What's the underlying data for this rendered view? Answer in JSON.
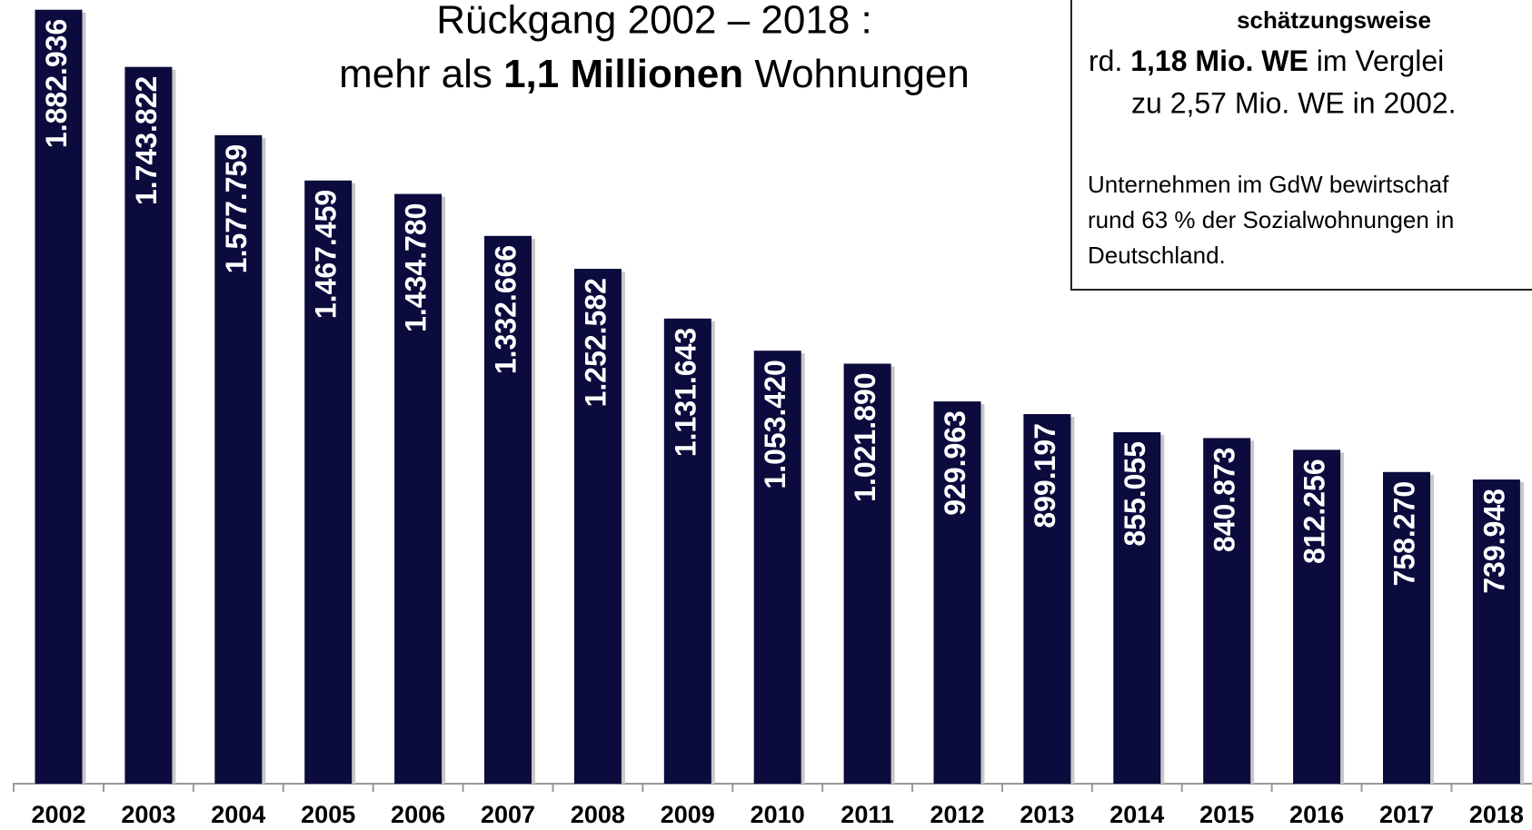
{
  "chart_data": {
    "type": "bar",
    "title": {
      "line1": "Rückgang 2002 – 2018 :",
      "line2": [
        "mehr als ",
        "1,1 Millionen",
        " Wohnungen"
      ]
    },
    "info_box": {
      "heading": "schätzungsweise",
      "line1": [
        "rd. ",
        "1,18 Mio. WE",
        " im Verglei"
      ],
      "line2": "zu 2,57 Mio. WE in 2002.",
      "note": [
        "Unternehmen im GdW bewirtschaf",
        "rund 63 % der Sozialwohnungen in",
        "Deutschland."
      ]
    },
    "categories": [
      "2002",
      "2003",
      "2004",
      "2005",
      "2006",
      "2007",
      "2008",
      "2009",
      "2010",
      "2011",
      "2012",
      "2013",
      "2014",
      "2015",
      "2016",
      "2017",
      "2018"
    ],
    "values": [
      1882936,
      1743822,
      1577759,
      1467459,
      1434780,
      1332666,
      1252582,
      1131643,
      1053420,
      1021890,
      929963,
      899197,
      855055,
      840873,
      812256,
      758270,
      739948
    ],
    "value_labels": [
      "1.882.936",
      "1.743.822",
      "1.577.759",
      "1.467.459",
      "1.434.780",
      "1.332.666",
      "1.252.582",
      "1.131.643",
      "1.053.420",
      "1.021.890",
      "929.963",
      "899.197",
      "855.055",
      "840.873",
      "812.256",
      "758.270",
      "739.948"
    ],
    "color": "#0b0b3d",
    "ylim": [
      0,
      1900000
    ]
  }
}
